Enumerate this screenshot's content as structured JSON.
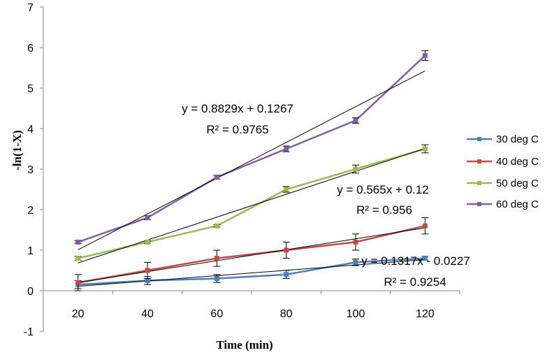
{
  "chart_data": {
    "type": "line",
    "title": "",
    "xlabel": "Time (min)",
    "ylabel": "-ln(1-X)",
    "categories": [
      20,
      40,
      60,
      80,
      100,
      120
    ],
    "ylim": [
      -1,
      7
    ],
    "yticks": [
      -1,
      0,
      1,
      2,
      3,
      4,
      5,
      6,
      7
    ],
    "grid": false,
    "legend": "right",
    "series": [
      {
        "name": "30 deg C",
        "color": "#4a7ebb",
        "values": [
          0.15,
          0.25,
          0.3,
          0.4,
          0.7,
          0.8
        ],
        "errors": [
          0.1,
          0.1,
          0.1,
          0.1,
          0.08,
          0.05
        ],
        "trend": {
          "slope": 0.1317,
          "intercept": -0.0227,
          "equation": "y = 0.1317x - 0.0227",
          "r2": "R² = 0.9254"
        }
      },
      {
        "name": "40 deg C",
        "color": "#be4b48",
        "values": [
          0.2,
          0.5,
          0.8,
          1.0,
          1.2,
          1.6
        ],
        "errors": [
          0.2,
          0.2,
          0.2,
          0.2,
          0.2,
          0.2
        ],
        "trend": {
          "slope": 0.27,
          "intercept": -0.07
        }
      },
      {
        "name": "50 deg C",
        "color": "#98b954",
        "values": [
          0.8,
          1.2,
          1.6,
          2.5,
          3.0,
          3.5
        ],
        "errors": [
          0.05,
          0.03,
          0.03,
          0.07,
          0.1,
          0.1
        ],
        "trend": {
          "slope": 0.565,
          "intercept": 0.12,
          "equation": "y = 0.565x + 0.12",
          "r2": "R² = 0.956"
        }
      },
      {
        "name": "60 deg C",
        "color": "#7d60a0",
        "values": [
          1.2,
          1.8,
          2.8,
          3.5,
          4.2,
          5.8
        ],
        "errors": [
          0.03,
          0.05,
          0.05,
          0.07,
          0.07,
          0.12
        ],
        "trend": {
          "slope": 0.8829,
          "intercept": 0.1267,
          "equation": "y = 0.8829x + 0.1267",
          "r2": "R² = 0.9765"
        }
      }
    ]
  }
}
